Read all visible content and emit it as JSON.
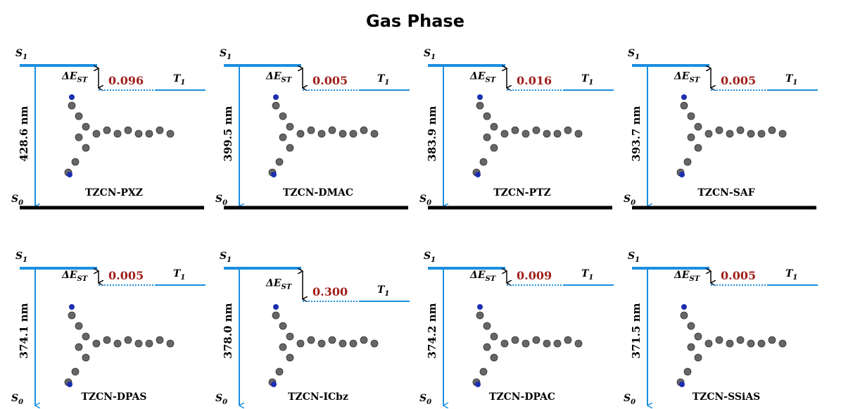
{
  "title": "Gas Phase",
  "labels": {
    "s": "S",
    "one": "1",
    "zero": "0",
    "t": "T",
    "delta": "ΔE",
    "st": "ST"
  },
  "panels": [
    {
      "name": "TZCN-PXZ",
      "wavelength": "428.6 nm",
      "gap": "0.096"
    },
    {
      "name": "TZCN-DMAC",
      "wavelength": "399.5 nm",
      "gap": "0.005"
    },
    {
      "name": "TZCN-PTZ",
      "wavelength": "383.9 nm",
      "gap": "0.016"
    },
    {
      "name": "TZCN-SAF",
      "wavelength": "393.7 nm",
      "gap": "0.005"
    },
    {
      "name": "TZCN-DPAS",
      "wavelength": "374.1 nm",
      "gap": "0.005"
    },
    {
      "name": "TZCN-ICbz",
      "wavelength": "378.0 nm",
      "gap": "0.300"
    },
    {
      "name": "TZCN-DPAC",
      "wavelength": "374.2 nm",
      "gap": "0.009"
    },
    {
      "name": "TZCN-SSiAS",
      "wavelength": "371.5 nm",
      "gap": "0.005"
    }
  ]
}
